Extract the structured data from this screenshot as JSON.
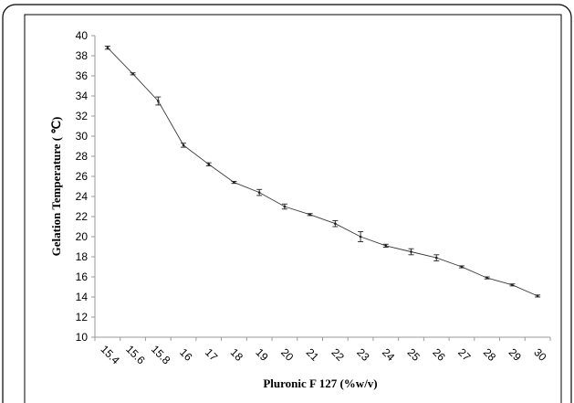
{
  "chart_data": {
    "type": "line",
    "title": "",
    "xlabel": "Pluronic F 127 (%w/v)",
    "ylabel": "Gelation Temperature ( ℃)",
    "categories": [
      "15.4",
      "15.6",
      "15.8",
      "16",
      "17",
      "18",
      "19",
      "20",
      "21",
      "22",
      "23",
      "24",
      "25",
      "26",
      "27",
      "28",
      "29",
      "30"
    ],
    "series": [
      {
        "values": [
          38.8,
          36.2,
          33.5,
          29.1,
          27.2,
          25.4,
          24.4,
          23.0,
          22.2,
          21.3,
          20.0,
          19.1,
          18.5,
          17.9,
          17.0,
          15.9,
          15.2,
          14.1
        ],
        "errors": [
          0.15,
          0.1,
          0.4,
          0.2,
          0.15,
          0.1,
          0.3,
          0.25,
          0.1,
          0.3,
          0.5,
          0.15,
          0.3,
          0.3,
          0.1,
          0.1,
          0.1,
          0.1
        ]
      }
    ],
    "ylim": [
      10,
      40
    ],
    "yticks": [
      "10",
      "12",
      "14",
      "16",
      "18",
      "20",
      "22",
      "24",
      "26",
      "28",
      "30",
      "32",
      "34",
      "36",
      "38",
      "40"
    ],
    "grid": false,
    "legend": "none",
    "colors": {
      "line": "#3a3a3a",
      "axis": "#9a9a9a",
      "frame": "#000000"
    }
  }
}
